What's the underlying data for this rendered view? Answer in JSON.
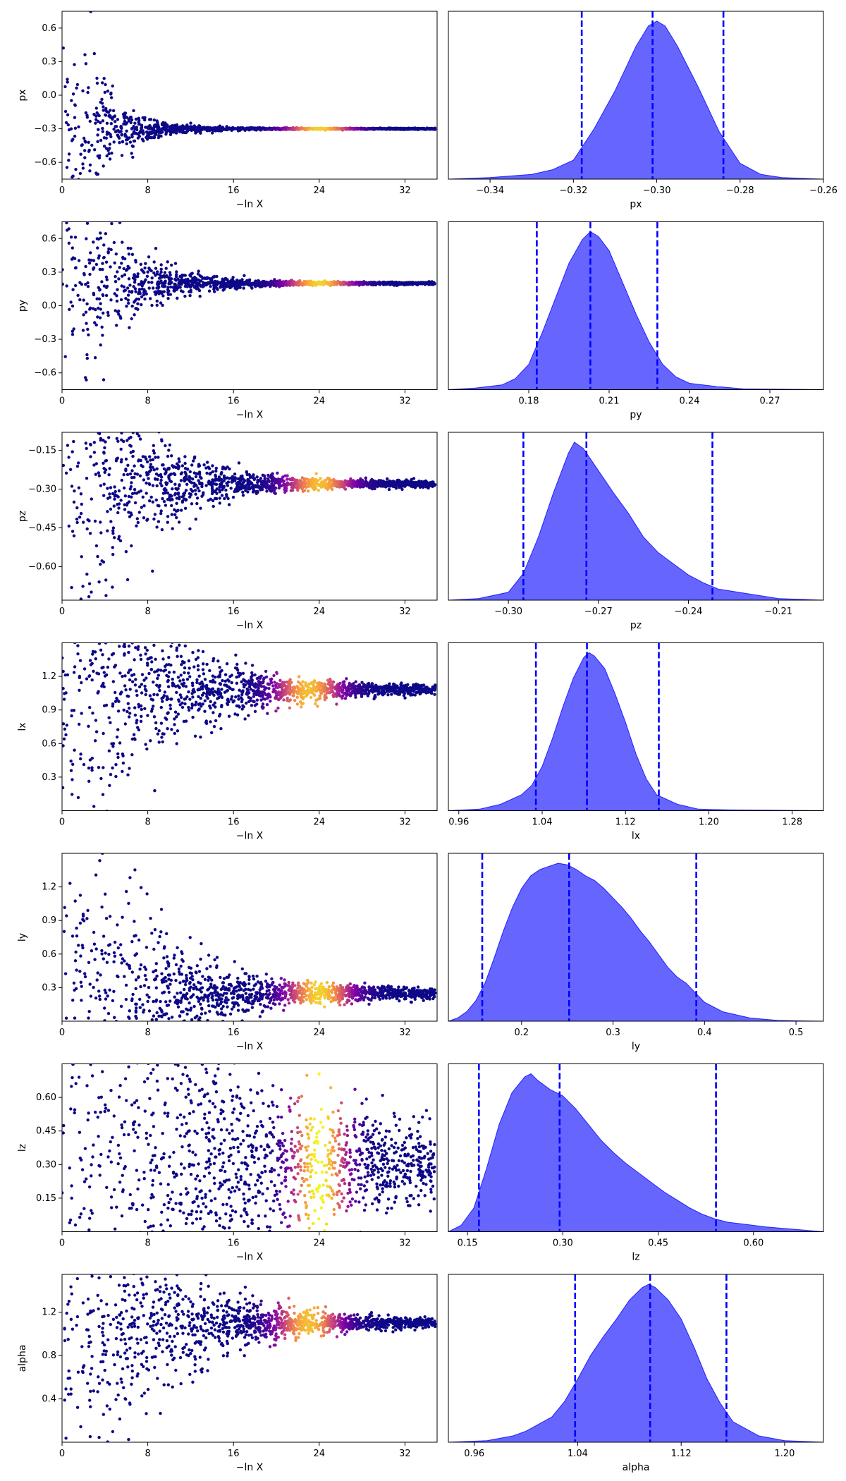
{
  "colors": {
    "trace_low": "#0d0887",
    "trace_mid": "#7e03a8",
    "trace_hot": "#f0f921",
    "posterior_fill": "#0000ff",
    "posterior_fill_opacity": 0.6,
    "quantile_line": "#0000ff"
  },
  "chart_data": [
    {
      "type": "scatter",
      "param": "px",
      "xlabel": "−ln X",
      "ylabel": "px",
      "xlim": [
        0,
        35
      ],
      "ylim": [
        -0.75,
        0.75
      ],
      "xticks": [
        0,
        8,
        16,
        24,
        32
      ],
      "yticks": [
        -0.6,
        -0.3,
        0.0,
        0.3,
        0.6
      ],
      "ytick_labels": [
        "−0.6",
        "−0.3",
        "0.0",
        "0.3",
        "0.6"
      ],
      "trace": {
        "center": -0.3,
        "spread_start": 0.75,
        "narrow_at": 5,
        "end_width": 0.005,
        "hot_at": 24,
        "hot_width": 3,
        "hot_strength": 0.9
      }
    },
    {
      "type": "area",
      "param": "px",
      "xlabel": "px",
      "xlim": [
        -0.35,
        -0.26
      ],
      "xticks": [
        -0.34,
        -0.32,
        -0.3,
        -0.28,
        -0.26
      ],
      "xtick_labels": [
        "−0.34",
        "−0.32",
        "−0.30",
        "−0.28",
        "−0.26"
      ],
      "series": [
        {
          "x": [
            -0.35,
            -0.34,
            -0.33,
            -0.325,
            -0.32,
            -0.315,
            -0.31,
            -0.305,
            -0.302,
            -0.3,
            -0.298,
            -0.295,
            -0.29,
            -0.285,
            -0.28,
            -0.275,
            -0.27,
            -0.26
          ],
          "y": [
            0.0,
            0.01,
            0.03,
            0.06,
            0.12,
            0.32,
            0.56,
            0.84,
            0.97,
            1.0,
            0.97,
            0.84,
            0.58,
            0.3,
            0.1,
            0.03,
            0.01,
            0.0
          ]
        }
      ],
      "quantiles": [
        -0.318,
        -0.301,
        -0.284
      ]
    },
    {
      "type": "scatter",
      "param": "py",
      "xlabel": "−ln X",
      "ylabel": "py",
      "xlim": [
        0,
        35
      ],
      "ylim": [
        -0.75,
        0.75
      ],
      "xticks": [
        0,
        8,
        16,
        24,
        32
      ],
      "yticks": [
        -0.6,
        -0.3,
        0.0,
        0.3,
        0.6
      ],
      "ytick_labels": [
        "−0.6",
        "−0.3",
        "0.0",
        "0.3",
        "0.6"
      ],
      "trace": {
        "center": 0.2,
        "spread_start": 0.75,
        "narrow_at": 7,
        "end_width": 0.01,
        "hot_at": 24,
        "hot_width": 3,
        "hot_strength": 0.9
      }
    },
    {
      "type": "area",
      "param": "py",
      "xlabel": "py",
      "xlim": [
        0.15,
        0.29
      ],
      "xticks": [
        0.18,
        0.21,
        0.24,
        0.27
      ],
      "xtick_labels": [
        "0.18",
        "0.21",
        "0.24",
        "0.27"
      ],
      "series": [
        {
          "x": [
            0.15,
            0.16,
            0.17,
            0.175,
            0.18,
            0.185,
            0.19,
            0.195,
            0.2,
            0.203,
            0.206,
            0.21,
            0.215,
            0.22,
            0.225,
            0.23,
            0.235,
            0.24,
            0.25,
            0.26,
            0.29
          ],
          "y": [
            0.0,
            0.01,
            0.03,
            0.07,
            0.16,
            0.36,
            0.58,
            0.8,
            0.95,
            1.0,
            0.97,
            0.88,
            0.68,
            0.48,
            0.3,
            0.16,
            0.08,
            0.04,
            0.02,
            0.005,
            0.0
          ]
        }
      ],
      "quantiles": [
        0.183,
        0.203,
        0.228
      ]
    },
    {
      "type": "scatter",
      "param": "pz",
      "xlabel": "−ln X",
      "ylabel": "pz",
      "xlim": [
        0,
        35
      ],
      "ylim": [
        -0.73,
        -0.08
      ],
      "xticks": [
        0,
        8,
        16,
        24,
        32
      ],
      "yticks": [
        -0.6,
        -0.45,
        -0.3,
        -0.15
      ],
      "ytick_labels": [
        "−0.60",
        "−0.45",
        "−0.30",
        "−0.15"
      ],
      "trace": {
        "center": -0.28,
        "spread_start": 0.45,
        "narrow_at": 9,
        "end_width": 0.01,
        "hot_at": 24,
        "hot_width": 3,
        "hot_strength": 0.85
      }
    },
    {
      "type": "area",
      "param": "pz",
      "xlabel": "pz",
      "xlim": [
        -0.32,
        -0.195
      ],
      "xticks": [
        -0.3,
        -0.27,
        -0.24,
        -0.21
      ],
      "xtick_labels": [
        "−0.30",
        "−0.27",
        "−0.24",
        "−0.21"
      ],
      "series": [
        {
          "x": [
            -0.32,
            -0.31,
            -0.3,
            -0.295,
            -0.29,
            -0.285,
            -0.28,
            -0.278,
            -0.275,
            -0.27,
            -0.265,
            -0.26,
            -0.255,
            -0.25,
            -0.245,
            -0.24,
            -0.235,
            -0.23,
            -0.22,
            -0.21,
            -0.195
          ],
          "y": [
            0.0,
            0.01,
            0.05,
            0.17,
            0.4,
            0.68,
            0.93,
            1.0,
            0.96,
            0.82,
            0.68,
            0.55,
            0.4,
            0.3,
            0.23,
            0.16,
            0.11,
            0.07,
            0.04,
            0.01,
            0.0
          ]
        }
      ],
      "quantiles": [
        -0.295,
        -0.274,
        -0.232
      ]
    },
    {
      "type": "scatter",
      "param": "lx",
      "xlabel": "−ln X",
      "ylabel": "lx",
      "xlim": [
        0,
        35
      ],
      "ylim": [
        0.0,
        1.5
      ],
      "xticks": [
        0,
        8,
        16,
        24,
        32
      ],
      "yticks": [
        0.3,
        0.6,
        0.9,
        1.2
      ],
      "ytick_labels": [
        "0.3",
        "0.6",
        "0.9",
        "1.2"
      ],
      "trace": {
        "center": 1.08,
        "spread_start": 1.0,
        "narrow_at": 12,
        "end_width": 0.02,
        "hot_at": 23,
        "hot_width": 3,
        "hot_strength": 0.85
      }
    },
    {
      "type": "area",
      "param": "lx",
      "xlabel": "lx",
      "xlim": [
        0.95,
        1.31
      ],
      "xticks": [
        0.96,
        1.04,
        1.12,
        1.2,
        1.28
      ],
      "xtick_labels": [
        "0.96",
        "1.04",
        "1.12",
        "1.20",
        "1.28"
      ],
      "series": [
        {
          "x": [
            0.95,
            0.98,
            1.0,
            1.02,
            1.03,
            1.04,
            1.05,
            1.06,
            1.07,
            1.08,
            1.085,
            1.09,
            1.1,
            1.11,
            1.12,
            1.13,
            1.14,
            1.15,
            1.17,
            1.19,
            1.22,
            1.31
          ],
          "y": [
            0.0,
            0.01,
            0.04,
            0.1,
            0.16,
            0.28,
            0.46,
            0.66,
            0.84,
            0.97,
            1.0,
            0.98,
            0.9,
            0.74,
            0.56,
            0.36,
            0.2,
            0.1,
            0.04,
            0.01,
            0.005,
            0.0
          ]
        }
      ],
      "quantiles": [
        1.034,
        1.083,
        1.152
      ]
    },
    {
      "type": "scatter",
      "param": "ly",
      "xlabel": "−ln X",
      "ylabel": "ly",
      "xlim": [
        0,
        35
      ],
      "ylim": [
        0.0,
        1.5
      ],
      "xticks": [
        0,
        8,
        16,
        24,
        32
      ],
      "yticks": [
        0.3,
        0.6,
        0.9,
        1.2
      ],
      "ytick_labels": [
        "0.3",
        "0.6",
        "0.9",
        "1.2"
      ],
      "trace": {
        "center": 0.25,
        "spread_start": 1.2,
        "narrow_at": 10,
        "end_width": 0.04,
        "hot_at": 24,
        "hot_width": 3,
        "hot_strength": 0.9
      }
    },
    {
      "type": "area",
      "param": "ly",
      "xlabel": "ly",
      "xlim": [
        0.12,
        0.53
      ],
      "xticks": [
        0.2,
        0.3,
        0.4,
        0.5
      ],
      "xtick_labels": [
        "0.2",
        "0.3",
        "0.4",
        "0.5"
      ],
      "series": [
        {
          "x": [
            0.12,
            0.13,
            0.14,
            0.15,
            0.16,
            0.17,
            0.18,
            0.19,
            0.2,
            0.21,
            0.22,
            0.23,
            0.24,
            0.25,
            0.26,
            0.27,
            0.28,
            0.29,
            0.3,
            0.31,
            0.32,
            0.33,
            0.34,
            0.35,
            0.36,
            0.37,
            0.38,
            0.39,
            0.4,
            0.42,
            0.45,
            0.48,
            0.53
          ],
          "y": [
            0.0,
            0.02,
            0.06,
            0.13,
            0.24,
            0.4,
            0.57,
            0.72,
            0.84,
            0.92,
            0.96,
            0.98,
            1.0,
            0.99,
            0.96,
            0.92,
            0.89,
            0.84,
            0.78,
            0.72,
            0.65,
            0.57,
            0.5,
            0.42,
            0.34,
            0.28,
            0.24,
            0.18,
            0.12,
            0.06,
            0.02,
            0.005,
            0.0
          ]
        }
      ],
      "quantiles": [
        0.157,
        0.252,
        0.391
      ]
    },
    {
      "type": "scatter",
      "param": "lz",
      "xlabel": "−ln X",
      "ylabel": "lz",
      "xlim": [
        0,
        35
      ],
      "ylim": [
        0.0,
        0.75
      ],
      "xticks": [
        0,
        8,
        16,
        24,
        32
      ],
      "yticks": [
        0.15,
        0.3,
        0.45,
        0.6
      ],
      "ytick_labels": [
        "0.15",
        "0.30",
        "0.45",
        "0.60"
      ],
      "trace": {
        "center": 0.3,
        "spread_start": 0.75,
        "narrow_at": 20,
        "end_width": 0.08,
        "hot_at": 24,
        "hot_width": 2.5,
        "hot_strength": 1.0
      }
    },
    {
      "type": "area",
      "param": "lz",
      "xlabel": "lz",
      "xlim": [
        0.12,
        0.71
      ],
      "xticks": [
        0.15,
        0.3,
        0.45,
        0.6
      ],
      "xtick_labels": [
        "0.15",
        "0.30",
        "0.45",
        "0.60"
      ],
      "series": [
        {
          "x": [
            0.12,
            0.14,
            0.16,
            0.18,
            0.2,
            0.22,
            0.24,
            0.25,
            0.26,
            0.28,
            0.3,
            0.32,
            0.34,
            0.36,
            0.38,
            0.4,
            0.42,
            0.44,
            0.46,
            0.48,
            0.5,
            0.52,
            0.54,
            0.56,
            0.58,
            0.6,
            0.62,
            0.65,
            0.68,
            0.71
          ],
          "y": [
            0.0,
            0.04,
            0.15,
            0.4,
            0.68,
            0.88,
            0.98,
            1.0,
            0.96,
            0.9,
            0.86,
            0.78,
            0.68,
            0.58,
            0.5,
            0.43,
            0.37,
            0.31,
            0.25,
            0.2,
            0.15,
            0.11,
            0.08,
            0.06,
            0.05,
            0.04,
            0.03,
            0.02,
            0.01,
            0.0
          ]
        }
      ],
      "quantiles": [
        0.168,
        0.295,
        0.541
      ]
    },
    {
      "type": "scatter",
      "param": "alpha",
      "xlabel": "−ln X",
      "ylabel": "alpha",
      "xlim": [
        0,
        35
      ],
      "ylim": [
        0.0,
        1.55
      ],
      "xticks": [
        0,
        8,
        16,
        24,
        32
      ],
      "yticks": [
        0.4,
        0.8,
        1.2
      ],
      "ytick_labels": [
        "0.4",
        "0.8",
        "1.2"
      ],
      "trace": {
        "center": 1.1,
        "spread_start": 1.1,
        "narrow_at": 12,
        "end_width": 0.02,
        "hot_at": 23,
        "hot_width": 3,
        "hot_strength": 0.85
      }
    },
    {
      "type": "area",
      "param": "alpha",
      "xlabel": "alpha",
      "xlim": [
        0.94,
        1.23
      ],
      "xticks": [
        0.96,
        1.04,
        1.12,
        1.2
      ],
      "xtick_labels": [
        "0.96",
        "1.04",
        "1.12",
        "1.20"
      ],
      "series": [
        {
          "x": [
            0.94,
            0.97,
            0.99,
            1.0,
            1.02,
            1.03,
            1.04,
            1.05,
            1.06,
            1.07,
            1.08,
            1.09,
            1.095,
            1.1,
            1.11,
            1.12,
            1.13,
            1.14,
            1.15,
            1.16,
            1.18,
            1.2,
            1.23
          ],
          "y": [
            0.0,
            0.01,
            0.04,
            0.07,
            0.16,
            0.26,
            0.4,
            0.55,
            0.67,
            0.78,
            0.9,
            0.98,
            1.0,
            0.98,
            0.9,
            0.78,
            0.6,
            0.4,
            0.25,
            0.13,
            0.04,
            0.01,
            0.0
          ]
        }
      ],
      "quantiles": [
        1.038,
        1.096,
        1.155
      ]
    }
  ]
}
